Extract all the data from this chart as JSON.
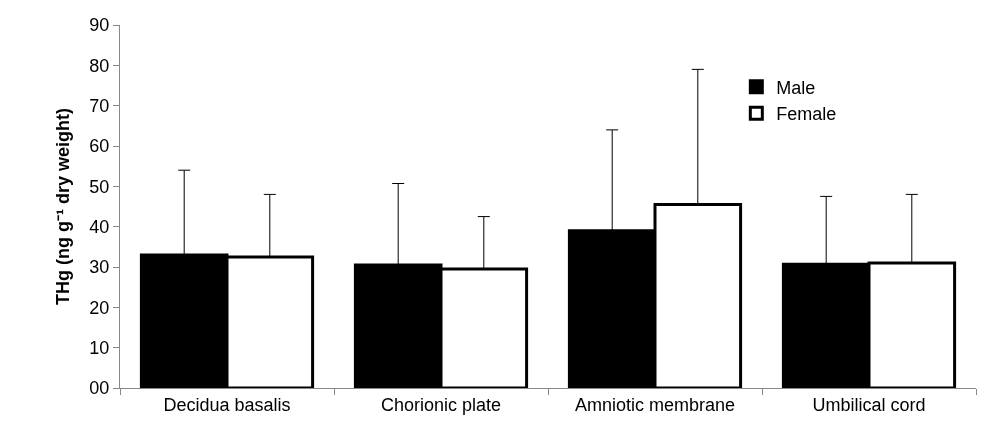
{
  "chart_data": {
    "type": "bar",
    "ylabel": "THg (ng g⁻¹ dry weight)",
    "categories": [
      "Decidua basalis",
      "Chorionic plate",
      "Amniotic membrane",
      "Umbilical cord"
    ],
    "series": [
      {
        "name": "Male",
        "color": "#000000",
        "values": [
          33,
          30.5,
          39,
          30.7
        ],
        "errors": [
          [
            33,
            54
          ],
          [
            30.5,
            50.7
          ],
          [
            39,
            64
          ],
          [
            30.7,
            47.5
          ]
        ]
      },
      {
        "name": "Female",
        "color": "#ffffff",
        "values": [
          32.5,
          29.5,
          45.5,
          31
        ],
        "errors": [
          [
            32.5,
            48
          ],
          [
            29.5,
            42.5
          ],
          [
            45.5,
            79
          ],
          [
            31,
            48
          ]
        ]
      }
    ],
    "ylim": [
      0,
      90
    ],
    "yticks": [
      {
        "value": 0,
        "label": "00"
      },
      10,
      20,
      30,
      40,
      50,
      60,
      70,
      80,
      90
    ],
    "legend": "top right"
  }
}
